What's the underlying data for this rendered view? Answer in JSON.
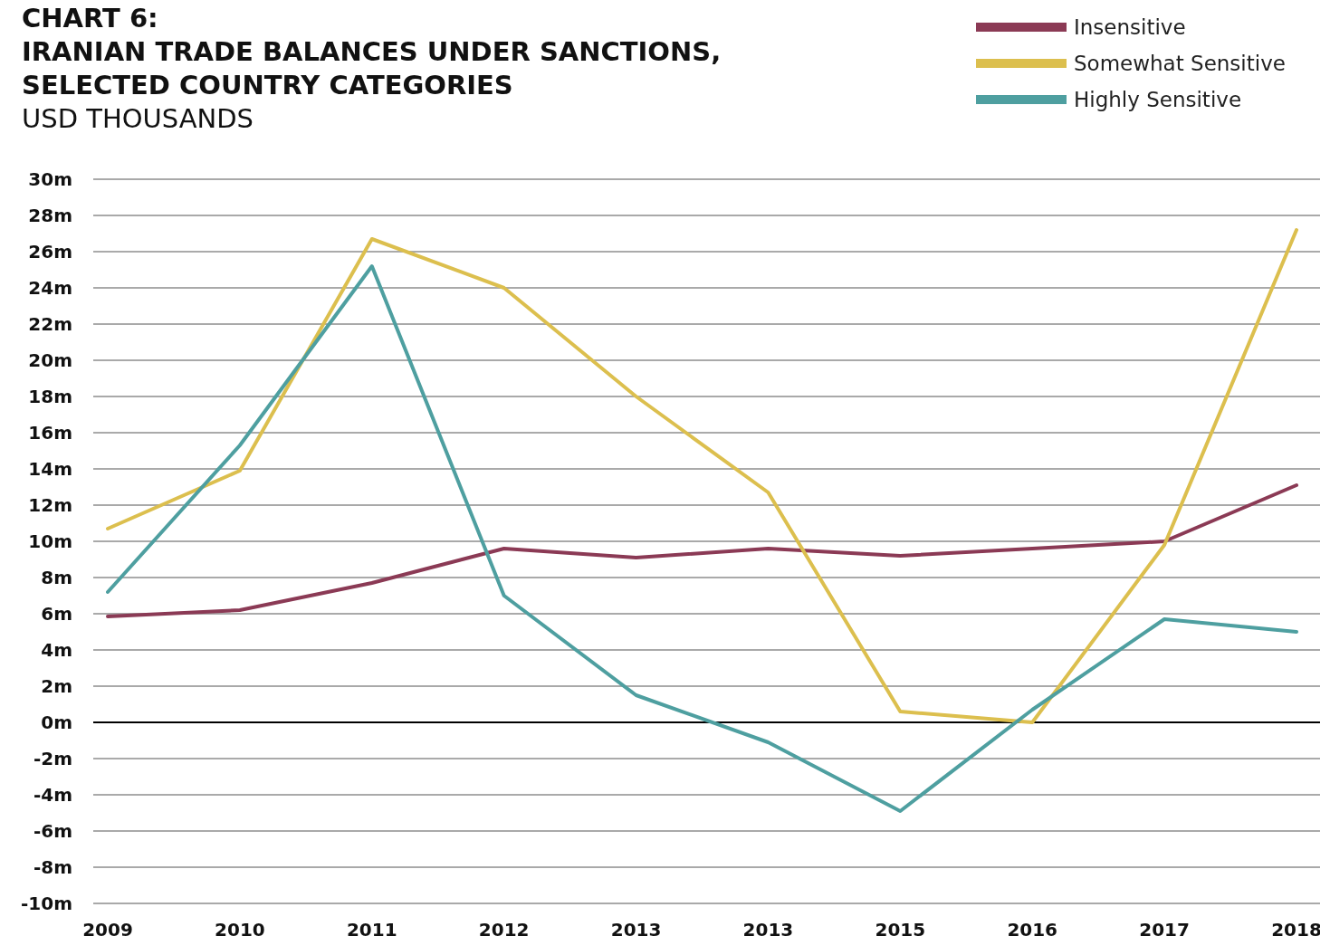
{
  "chart_data": {
    "type": "line",
    "title": "CHART 6:\nIRANIAN TRADE BALANCES UNDER SANCTIONS,\nSELECTED COUNTRY CATEGORIES",
    "subtitle": "USD THOUSANDS",
    "categories": [
      "2009",
      "2010",
      "2011",
      "2012",
      "2013",
      "2013",
      "2015",
      "2016",
      "2017",
      "2018"
    ],
    "series": [
      {
        "name": "Insensitive",
        "color": "#8b3a55",
        "values": [
          5.85,
          6.2,
          7.7,
          9.6,
          9.1,
          9.6,
          9.2,
          9.6,
          10.0,
          13.1
        ]
      },
      {
        "name": "Somewhat Sensitive",
        "color": "#dcbf4e",
        "values": [
          10.7,
          13.9,
          26.7,
          24.0,
          18.0,
          12.7,
          0.6,
          0,
          9.8,
          27.2
        ]
      },
      {
        "name": "Highly Sensitive",
        "color": "#4e9fa0",
        "values": [
          7.2,
          15.3,
          25.2,
          7.0,
          1.5,
          -1.1,
          -4.9,
          0.7,
          5.7,
          5.0
        ]
      }
    ],
    "ylim": [
      -10,
      30
    ],
    "yticks": [
      {
        "value": -10,
        "label": "-10m"
      },
      {
        "value": -8,
        "label": "-8m"
      },
      {
        "value": -6,
        "label": "-6m"
      },
      {
        "value": -4,
        "label": "-4m"
      },
      {
        "value": -2,
        "label": "-2m"
      },
      {
        "value": 0,
        "label": "0m"
      },
      {
        "value": 2,
        "label": "2m"
      },
      {
        "value": 4,
        "label": "4m"
      },
      {
        "value": 6,
        "label": "6m"
      },
      {
        "value": 8,
        "label": "8m"
      },
      {
        "value": 10,
        "label": "10m"
      },
      {
        "value": 12,
        "label": "12m"
      },
      {
        "value": 14,
        "label": "14m"
      },
      {
        "value": 16,
        "label": "16m"
      },
      {
        "value": 18,
        "label": "18m"
      },
      {
        "value": 20,
        "label": "20m"
      },
      {
        "value": 22,
        "label": "22m"
      },
      {
        "value": 24,
        "label": "24m"
      },
      {
        "value": 26,
        "label": "26m"
      },
      {
        "value": 28,
        "label": "28m"
      },
      {
        "value": 30,
        "label": "30m"
      }
    ],
    "grid": "y",
    "legend": "top right",
    "marker": "none",
    "line_style": "solid"
  }
}
